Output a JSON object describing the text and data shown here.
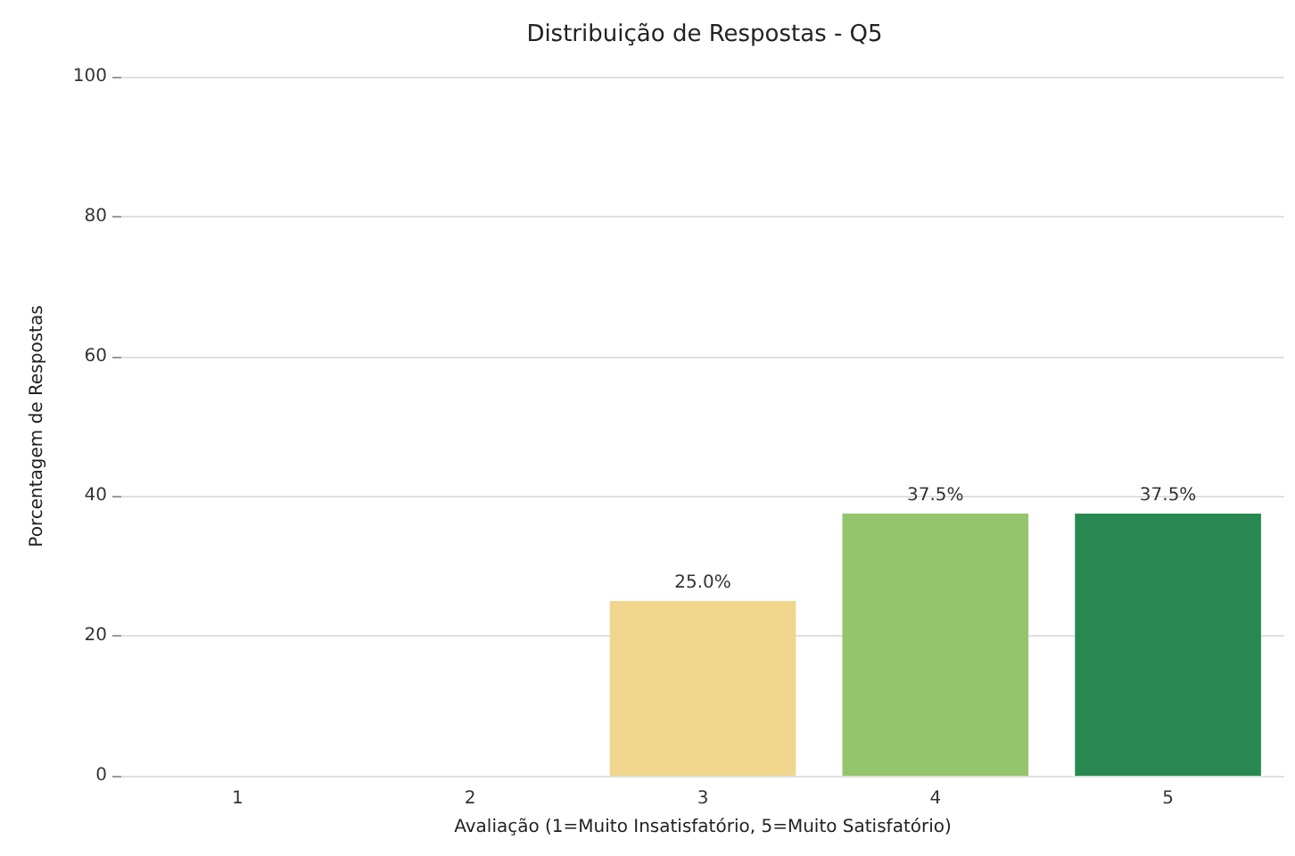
{
  "chart_data": {
    "type": "bar",
    "title": "Distribuição de Respostas - Q5",
    "xlabel": "Avaliação (1=Muito Insatisfatório, 5=Muito Satisfatório)",
    "ylabel": "Porcentagem de Respostas",
    "categories": [
      "1",
      "2",
      "3",
      "4",
      "5"
    ],
    "values": [
      null,
      null,
      25.0,
      37.5,
      37.5
    ],
    "colors": [
      null,
      null,
      "#f0d58c",
      "#94c56c",
      "#27894f"
    ],
    "value_labels": [
      null,
      null,
      "25.0%",
      "37.5%",
      "37.5%"
    ],
    "ylim": [
      0,
      100
    ],
    "yticks": [
      0,
      20,
      40,
      60,
      80,
      100
    ],
    "grid": "y"
  }
}
